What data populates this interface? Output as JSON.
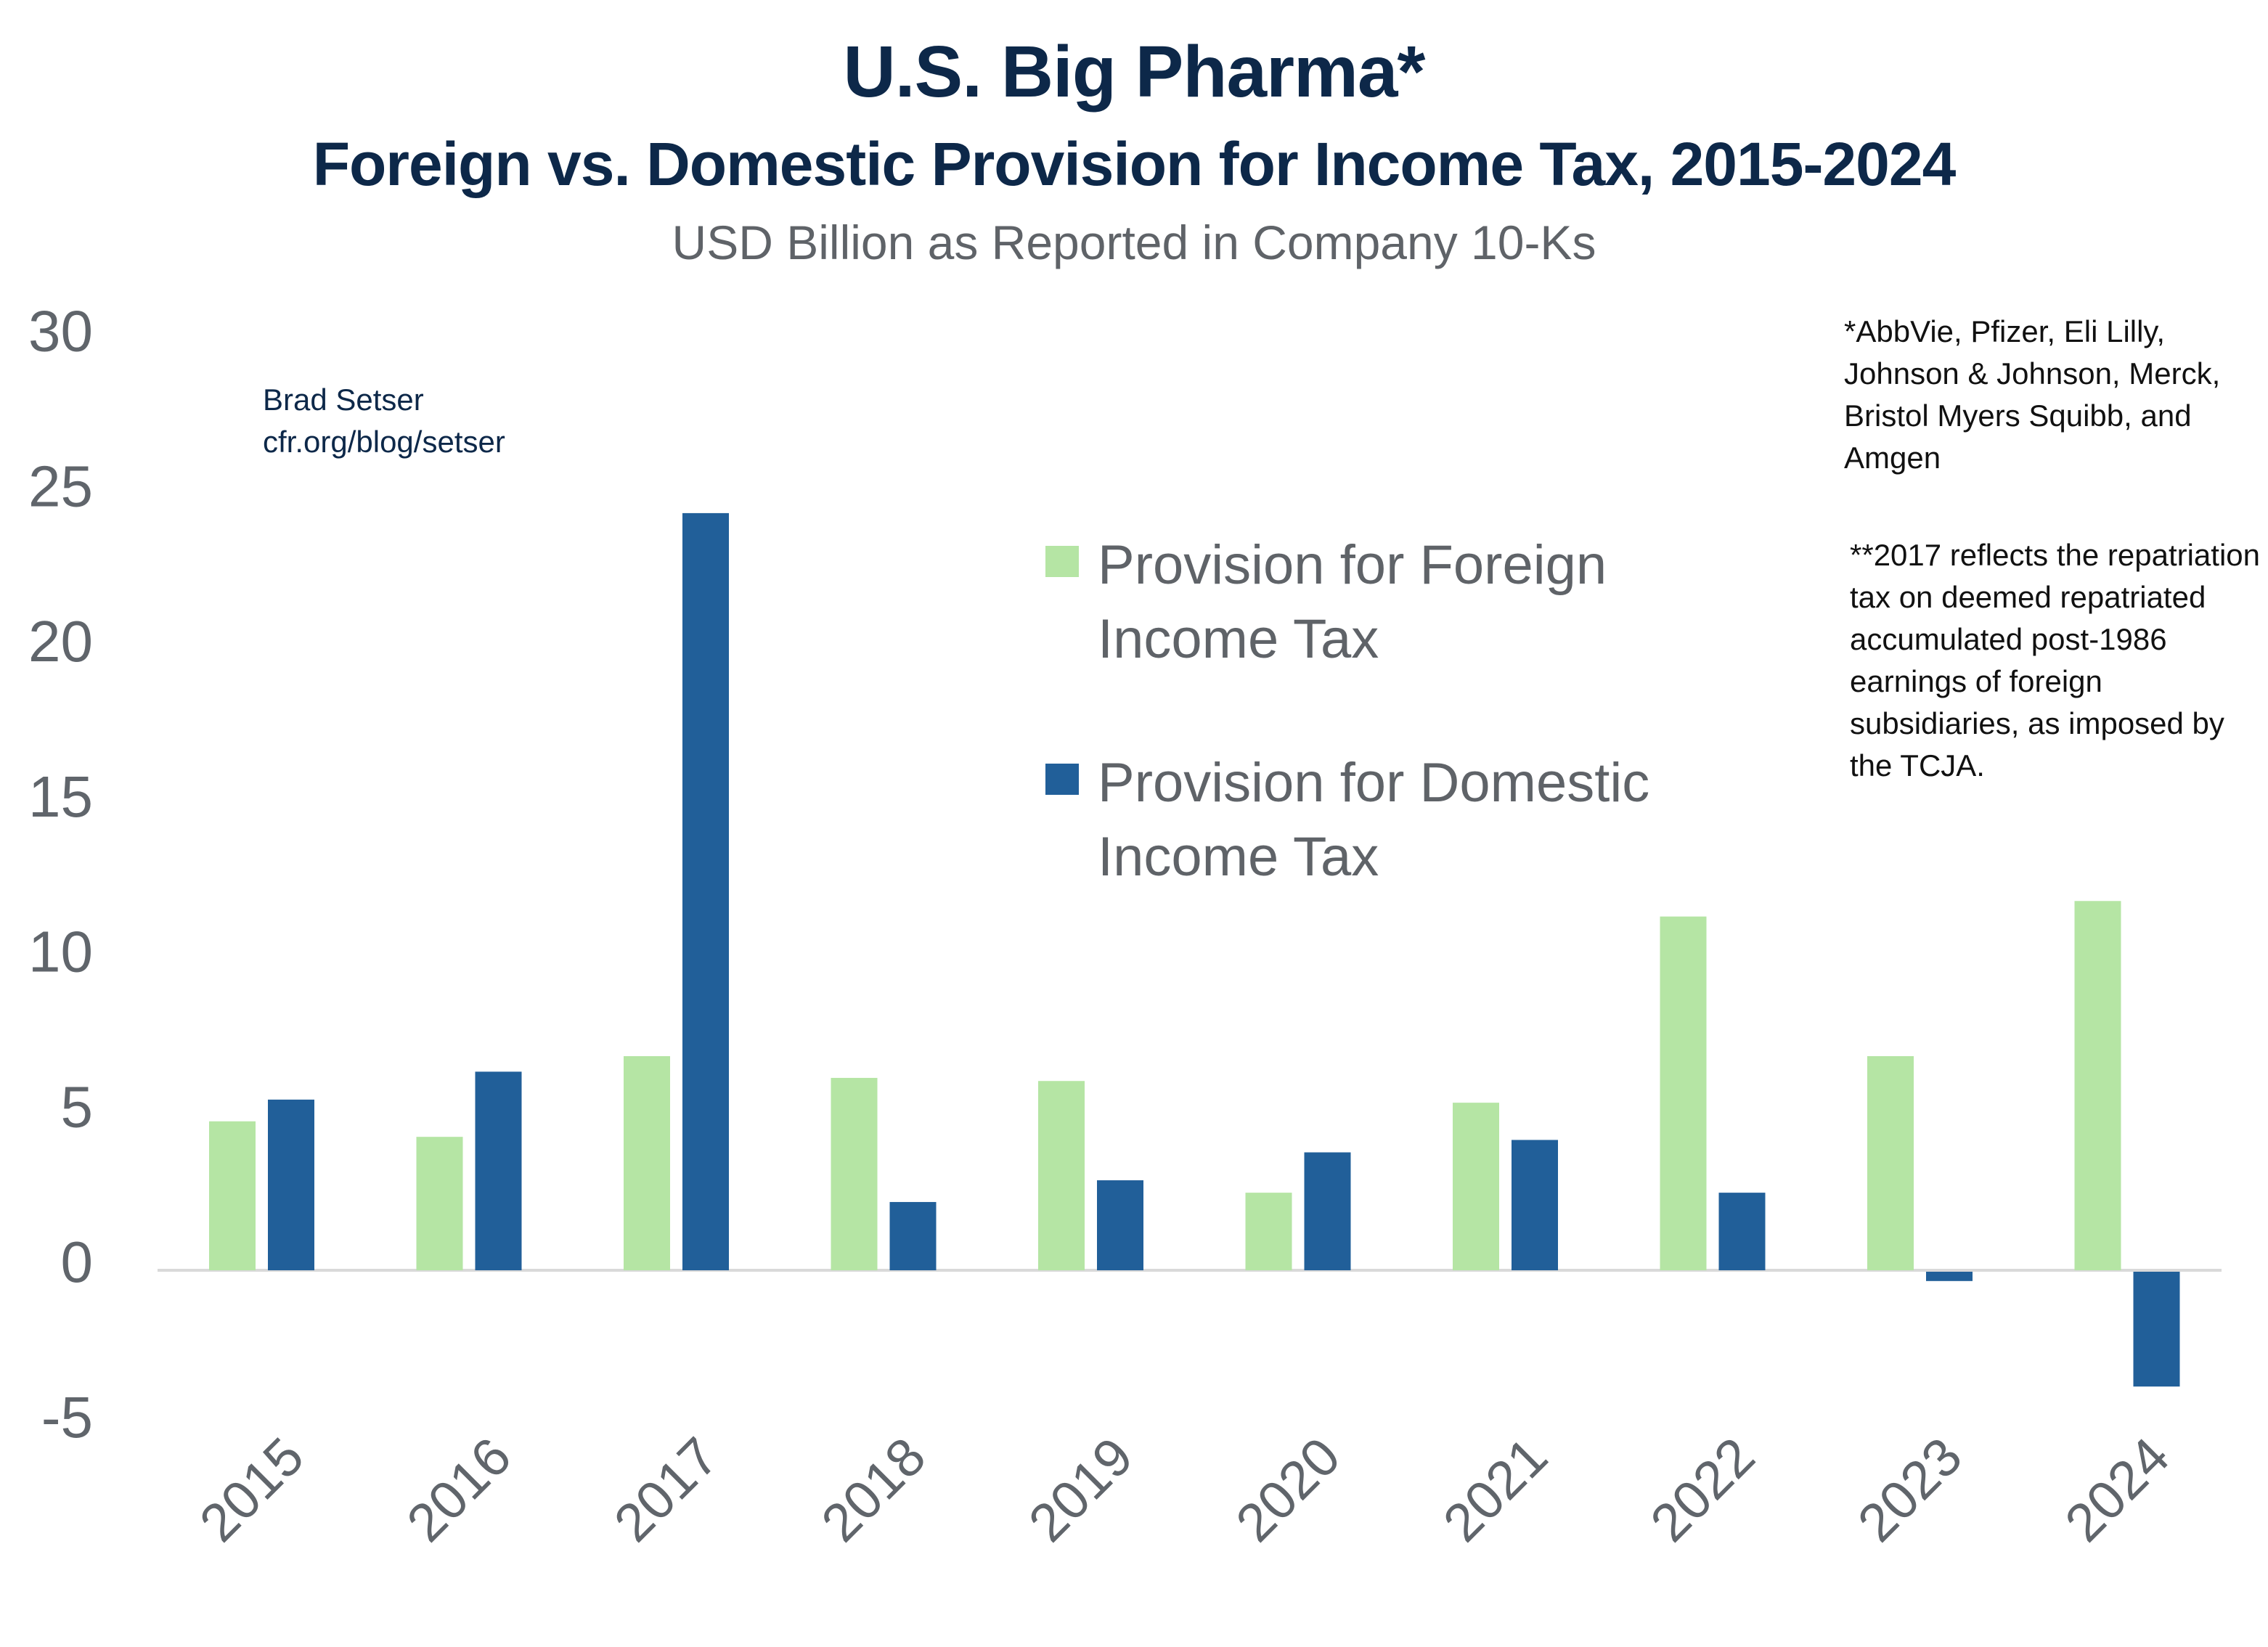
{
  "header": {
    "title": "U.S. Big Pharma*",
    "subtitle": "Foreign vs. Domestic Provision for Income Tax, 2015-2024",
    "units": "USD Billion as Reported in Company 10-Ks"
  },
  "credit": {
    "author": "Brad Setser",
    "url": "cfr.org/blog/setser"
  },
  "notes": {
    "companies": "*AbbVie, Pfizer, Eli Lilly, Johnson & Johnson, Merck, Bristol Myers Squibb, and Amgen",
    "repatriation": "**2017 reflects the repatriation tax on deemed repatriated accumulated post-1986 earnings of foreign subsidiaries, as imposed by the TCJA."
  },
  "colors": {
    "foreign": "#b5e5a4",
    "domestic": "#215f99",
    "axis_line": "#d9d9d9",
    "tick_text": "#60656b",
    "title": "#0d2849"
  },
  "chart_data": {
    "type": "bar",
    "title": "U.S. Big Pharma*",
    "subtitle": "Foreign vs. Domestic Provision for Income Tax, 2015-2024",
    "ylabel": "USD Billion as Reported in Company 10-Ks",
    "xlabel": "",
    "categories": [
      "2015",
      "2016",
      "2017",
      "2018",
      "2019",
      "2020",
      "2021",
      "2022",
      "2023",
      "2024"
    ],
    "series": [
      {
        "name": "Provision for Foreign Income Tax",
        "color": "#b5e5a4",
        "values": [
          4.8,
          4.3,
          6.9,
          6.2,
          6.1,
          2.5,
          5.4,
          11.4,
          6.9,
          11.9
        ]
      },
      {
        "name": "Provision for Domestic Income Tax",
        "color": "#215f99",
        "values": [
          5.5,
          6.4,
          24.4,
          2.2,
          2.9,
          3.8,
          4.2,
          2.5,
          -0.3,
          -3.7
        ]
      }
    ],
    "ylim": [
      -5,
      30
    ],
    "yticks": [
      30,
      25,
      20,
      15,
      10,
      5,
      0,
      -5
    ],
    "grid": false,
    "legend_position": "top-center"
  }
}
